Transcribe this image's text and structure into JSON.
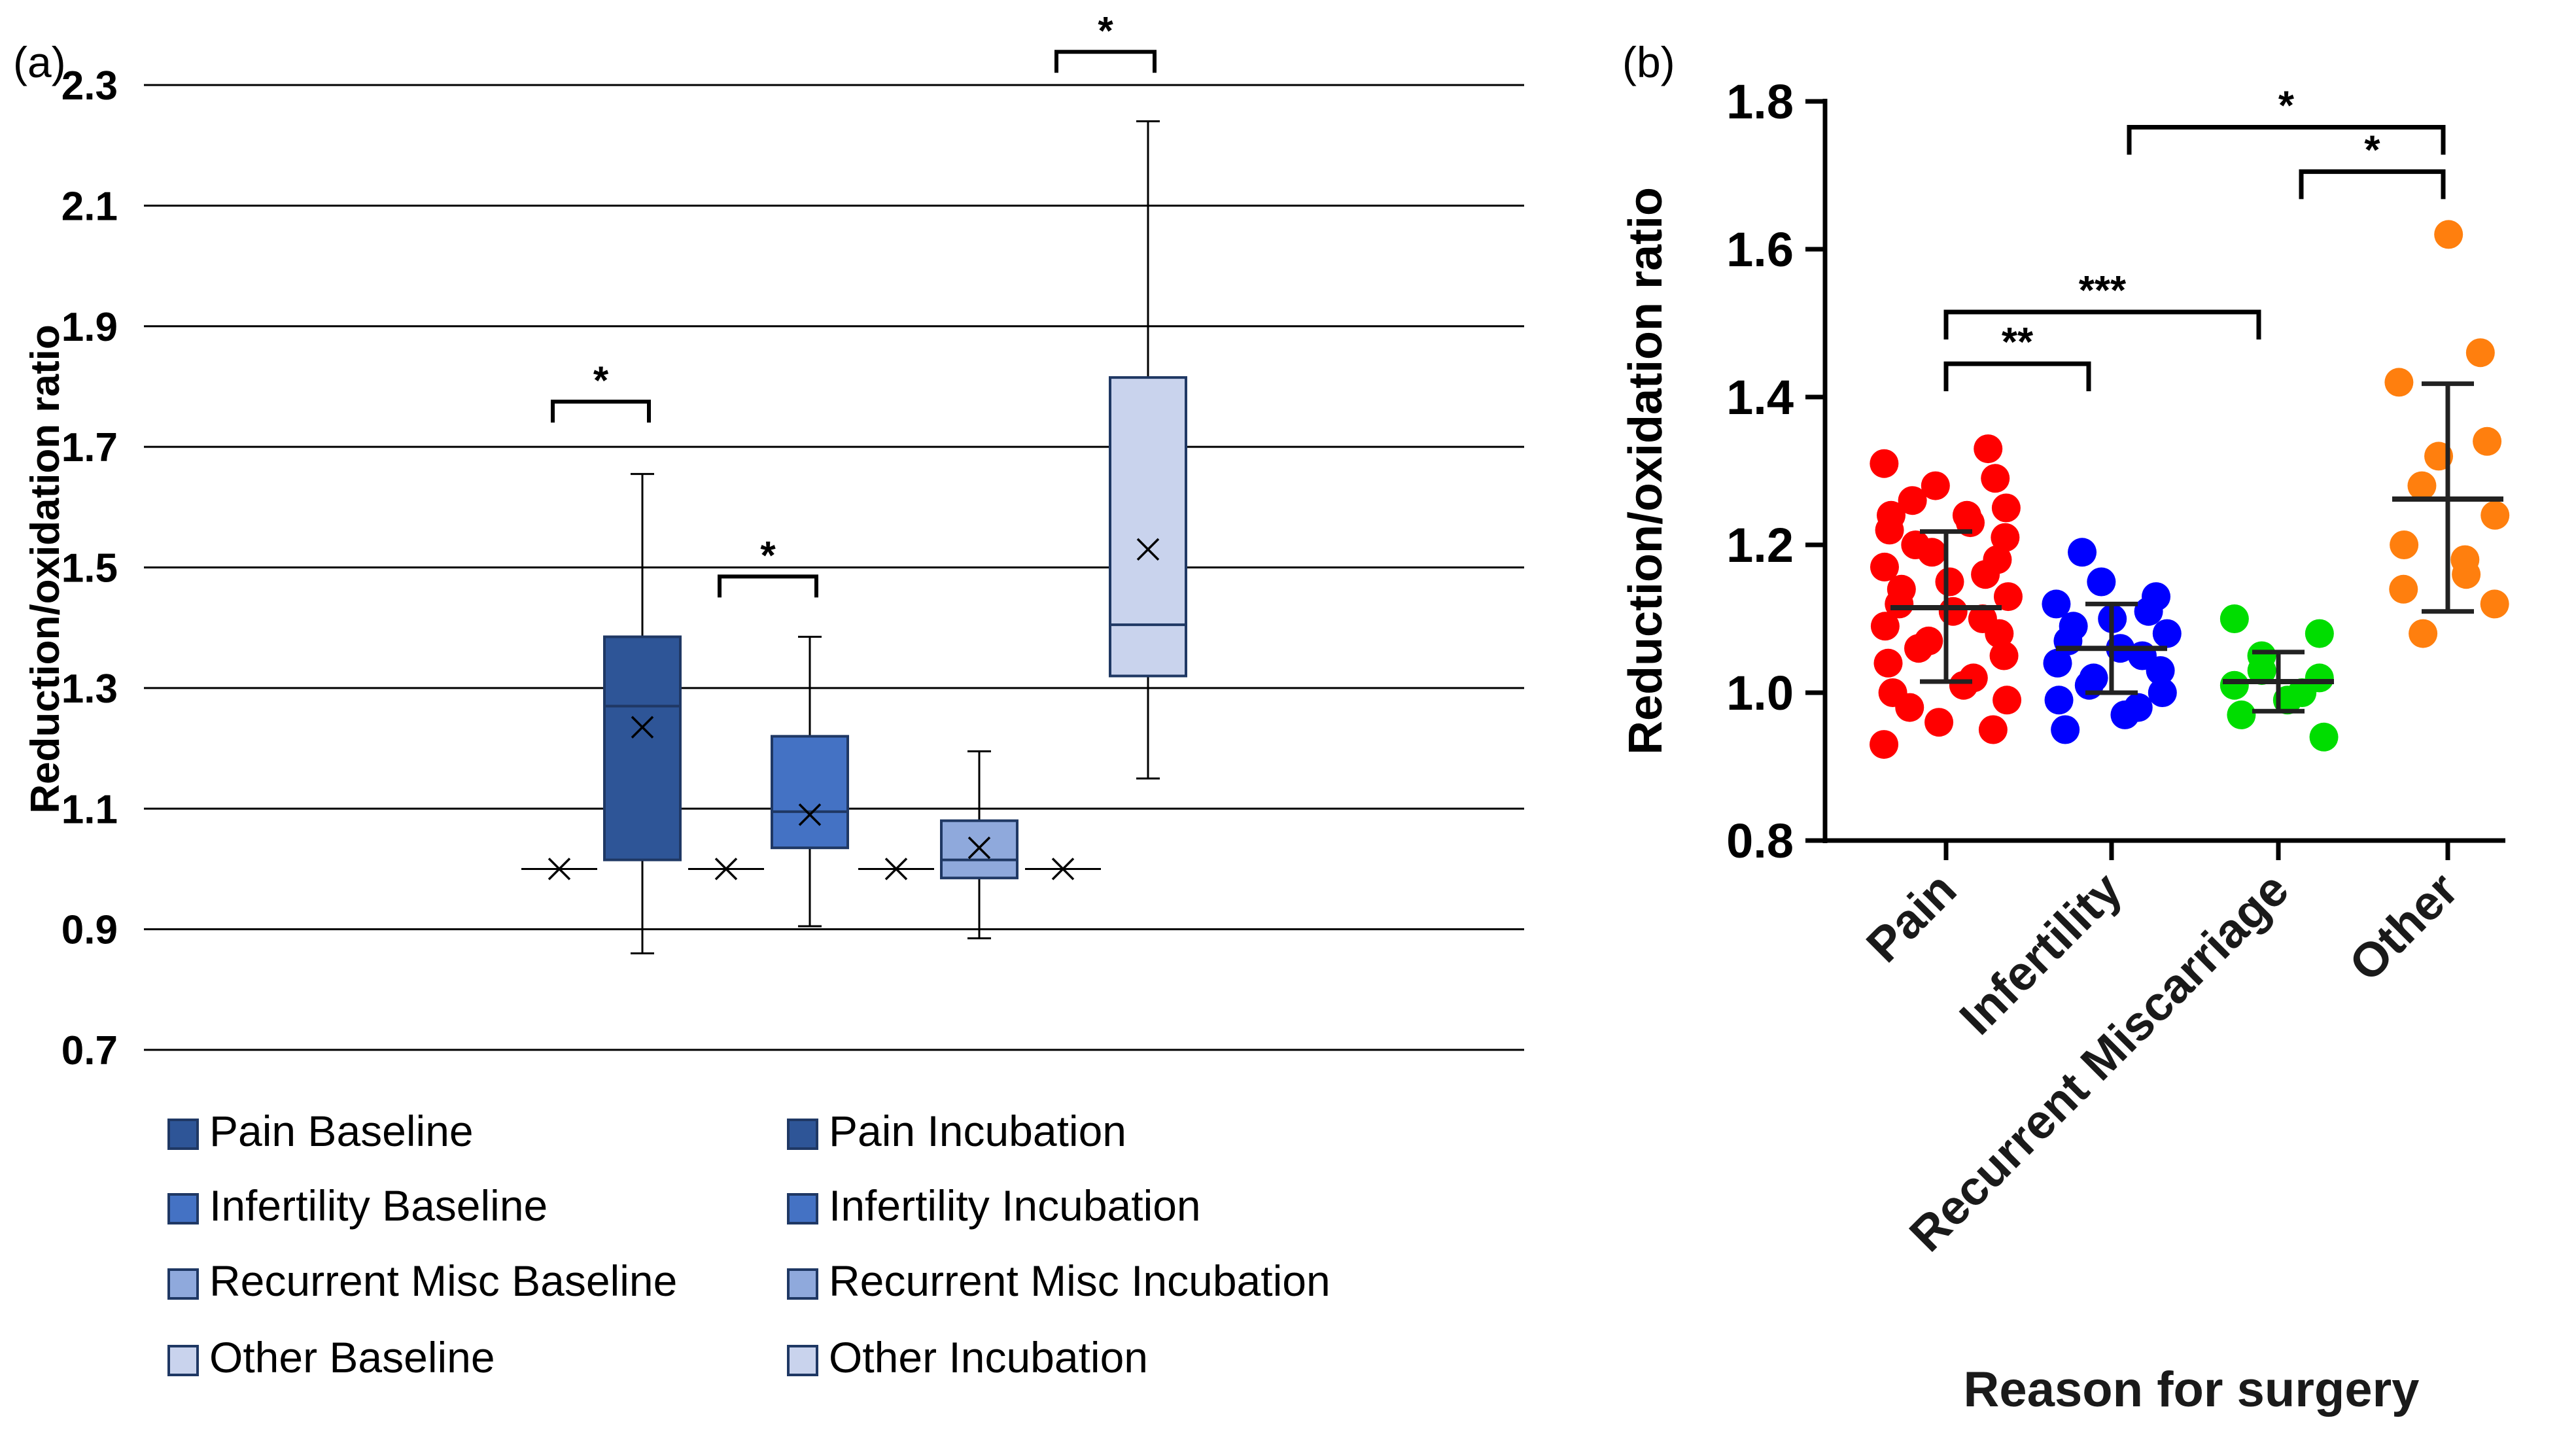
{
  "chart_data": [
    {
      "panel": "(a)",
      "type": "box",
      "ylabel": "Reduction/oxidation ratio",
      "ylim": [
        0.7,
        2.3
      ],
      "yticks": [
        "0.7",
        "0.9",
        "1.1",
        "1.3",
        "1.5",
        "1.7",
        "1.9",
        "2.1",
        "2.3"
      ],
      "grid": "horizontal",
      "colors": {
        "pain": "#2e5597",
        "infertility": "#4472c4",
        "recurrent": "#8fa9dc",
        "other": "#c9d3ed",
        "edge": "#1f3864"
      },
      "boxes": [
        {
          "name": "Pain Baseline",
          "mean": 1.0
        },
        {
          "name": "Pain Incubation",
          "min": 0.86,
          "q1": 1.015,
          "median": 1.27,
          "q3": 1.385,
          "max": 1.655,
          "mean": 1.235
        },
        {
          "name": "Infertility Baseline",
          "mean": 1.0
        },
        {
          "name": "Infertility Incubation",
          "min": 0.905,
          "q1": 1.035,
          "median": 1.095,
          "q3": 1.22,
          "max": 1.385,
          "mean": 1.09
        },
        {
          "name": "Recurrent Misc Baseline",
          "mean": 1.0
        },
        {
          "name": "Recurrent Misc Incubation",
          "min": 0.885,
          "q1": 0.985,
          "median": 1.015,
          "q3": 1.08,
          "max": 1.195,
          "mean": 1.035
        },
        {
          "name": "Other Baseline",
          "mean": 1.0
        },
        {
          "name": "Other Incubation",
          "min": 1.15,
          "q1": 1.32,
          "median": 1.405,
          "q3": 1.815,
          "max": 2.24,
          "mean": 1.53
        }
      ],
      "significance": [
        {
          "from": 0,
          "to": 1,
          "label": "*"
        },
        {
          "from": 2,
          "to": 3,
          "label": "*"
        },
        {
          "from": 6,
          "to": 7,
          "label": "*"
        }
      ],
      "legend": [
        "Pain Baseline",
        "Pain Incubation",
        "Infertility Baseline",
        "Infertility Incubation",
        "Recurrent Misc Baseline",
        "Recurrent Misc Incubation",
        "Other Baseline",
        "Other Incubation"
      ]
    },
    {
      "panel": "(b)",
      "type": "scatter",
      "xlabel": "Reason for surgery",
      "ylabel": "Reduction/oxidation ratio",
      "ylim": [
        0.8,
        1.8
      ],
      "yticks": [
        "0.8",
        "1.0",
        "1.2",
        "1.4",
        "1.6",
        "1.8"
      ],
      "categories": [
        "Pain",
        "Infertility",
        "Recurrent Miscarriage",
        "Other"
      ],
      "groups": [
        {
          "name": "Pain",
          "color": "#ff0000",
          "mean": 1.115,
          "sd_low": 1.015,
          "sd_high": 1.218,
          "points": [
            1.33,
            1.31,
            1.29,
            1.28,
            1.26,
            1.25,
            1.24,
            1.24,
            1.23,
            1.22,
            1.21,
            1.2,
            1.19,
            1.18,
            1.17,
            1.16,
            1.15,
            1.14,
            1.13,
            1.12,
            1.11,
            1.1,
            1.09,
            1.08,
            1.07,
            1.06,
            1.05,
            1.04,
            1.02,
            1.01,
            1.0,
            0.99,
            0.98,
            0.96,
            0.95,
            0.93
          ]
        },
        {
          "name": "Infertility",
          "color": "#0000ff",
          "mean": 1.06,
          "sd_low": 1.0,
          "sd_high": 1.12,
          "points": [
            1.19,
            1.15,
            1.13,
            1.12,
            1.11,
            1.1,
            1.09,
            1.08,
            1.07,
            1.06,
            1.05,
            1.04,
            1.03,
            1.02,
            1.01,
            1.0,
            0.99,
            0.98,
            0.97,
            0.95
          ]
        },
        {
          "name": "Recurrent Miscarriage",
          "color": "#00dd00",
          "mean": 1.015,
          "sd_low": 0.975,
          "sd_high": 1.055,
          "points": [
            1.1,
            1.08,
            1.05,
            1.03,
            1.02,
            1.01,
            1.0,
            0.99,
            0.97,
            0.94
          ]
        },
        {
          "name": "Other",
          "color": "#ff7f0e",
          "mean": 1.262,
          "sd_low": 1.11,
          "sd_high": 1.418,
          "points": [
            1.62,
            1.46,
            1.42,
            1.34,
            1.32,
            1.28,
            1.24,
            1.2,
            1.18,
            1.16,
            1.14,
            1.12,
            1.08
          ]
        }
      ],
      "significance": [
        {
          "from": 1,
          "to": 3,
          "label": "*"
        },
        {
          "from": 2,
          "to": 3,
          "label": "*"
        },
        {
          "from": 0,
          "to": 2,
          "label": "***"
        },
        {
          "from": 0,
          "to": 1,
          "label": "**"
        }
      ]
    }
  ]
}
